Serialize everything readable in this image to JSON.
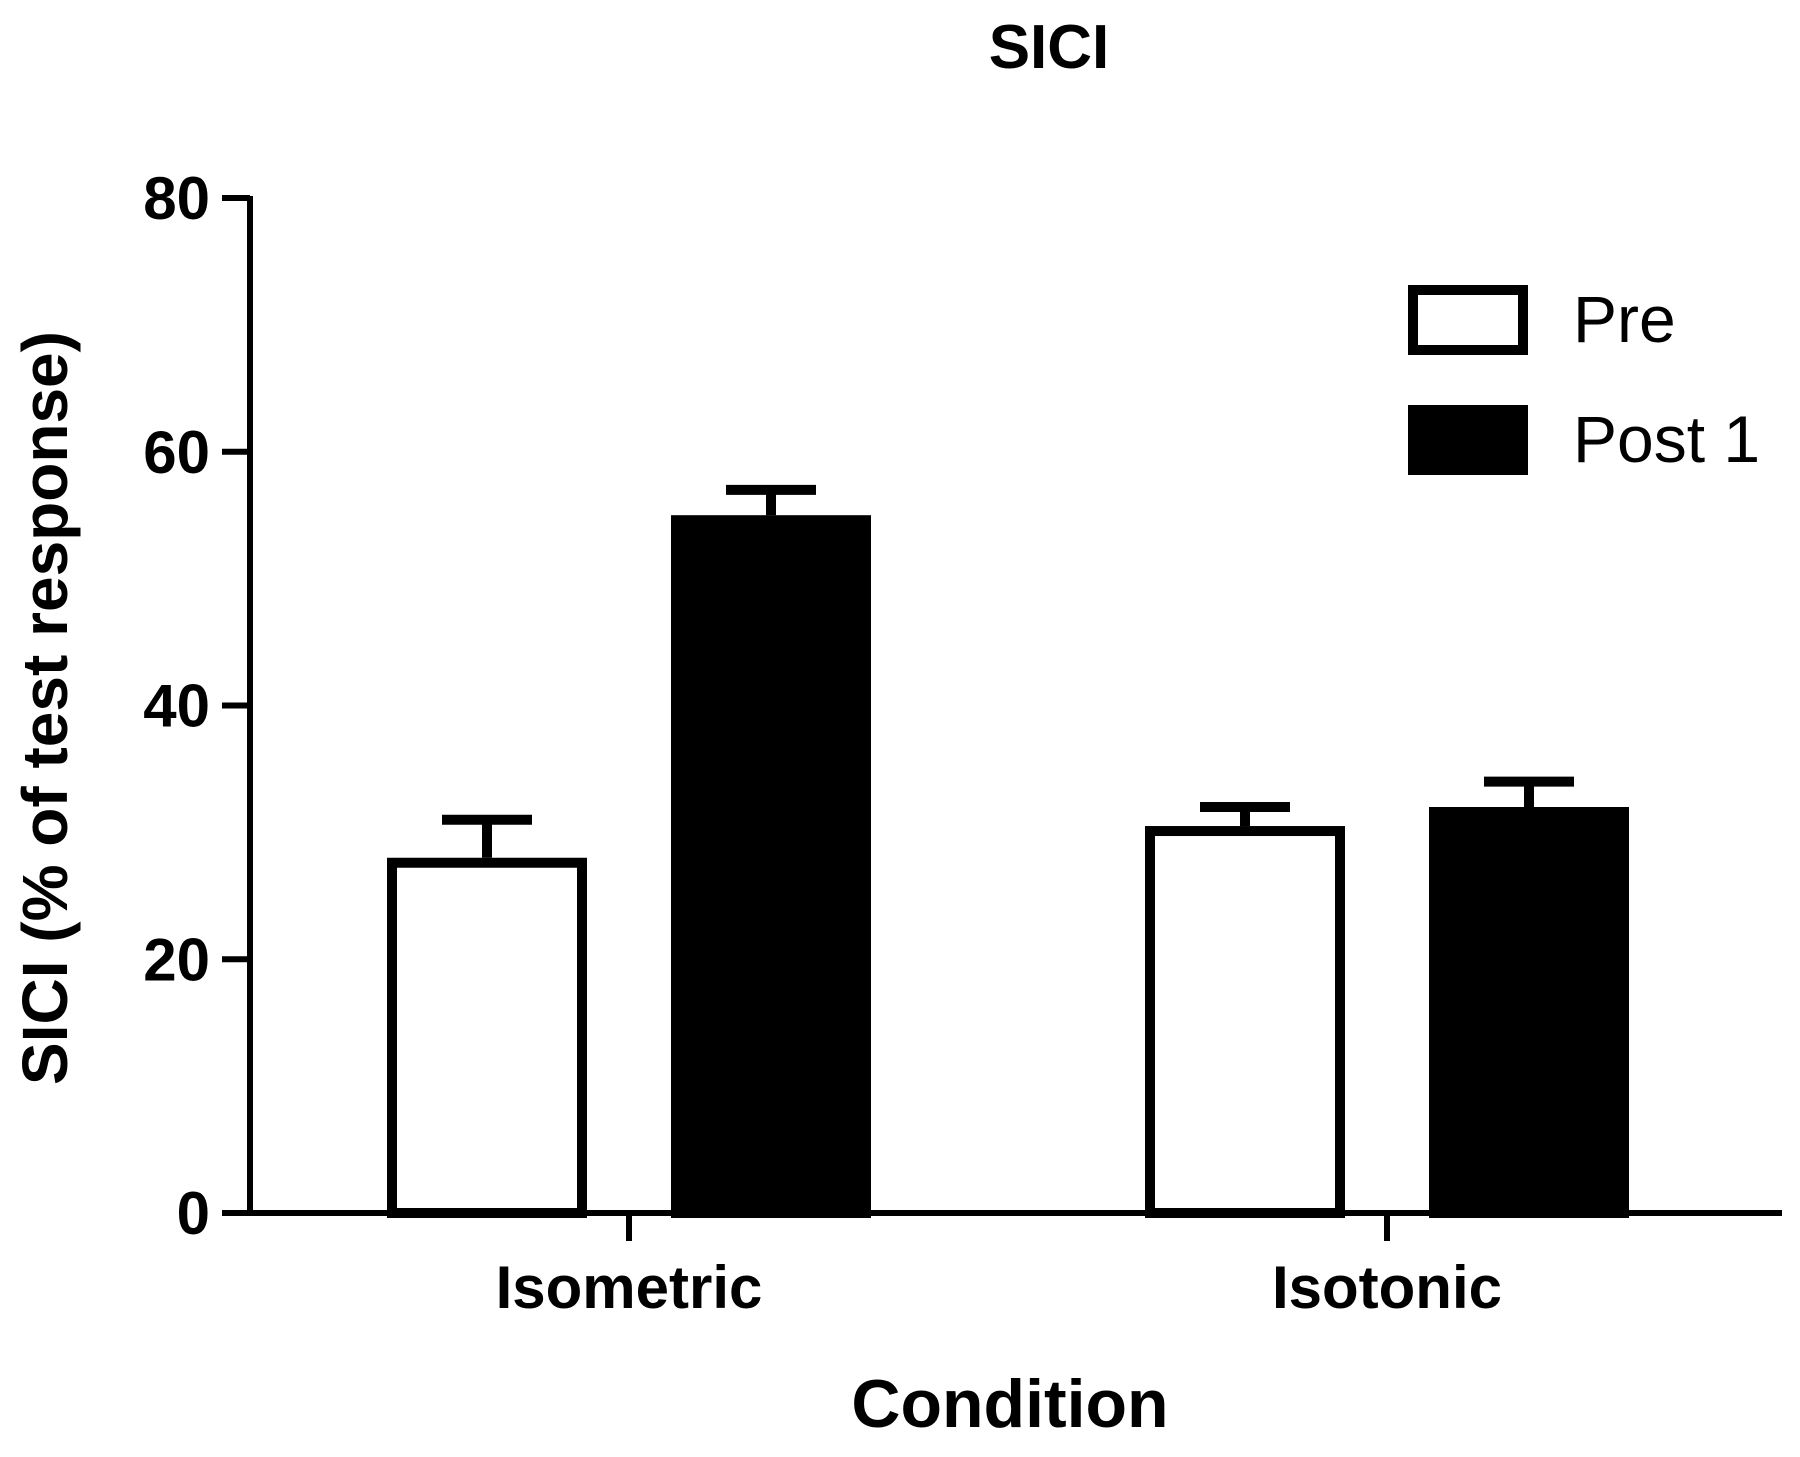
{
  "chart_data": {
    "type": "bar",
    "title": "SICI",
    "xlabel": "Condition",
    "ylabel": "SICI (% of test response)",
    "categories": [
      "Isometric",
      "Isotonic"
    ],
    "ylim": [
      0,
      80
    ],
    "yticks": [
      "0",
      "20",
      "40",
      "60",
      "80"
    ],
    "legend_position": "top-right",
    "series": [
      {
        "name": "Pre",
        "fill": "#ffffff",
        "values": [
          28.0,
          30.5
        ],
        "errors": [
          3.0,
          1.5
        ]
      },
      {
        "name": "Post 1",
        "fill": "#000000",
        "values": [
          55.0,
          32.0
        ],
        "errors": [
          2.0,
          2.0
        ]
      }
    ]
  }
}
